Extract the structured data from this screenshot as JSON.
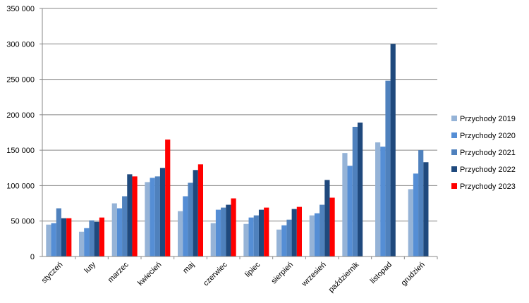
{
  "chart_data": {
    "type": "bar",
    "categories": [
      "styczeń",
      "luty",
      "marzec",
      "kwiecień",
      "maj",
      "czerwiec",
      "lipiec",
      "sierpień",
      "wrzesień",
      "październik",
      "listopad",
      "grudzień"
    ],
    "series": [
      {
        "name": "Przychody 2019",
        "color": "#95B3D7",
        "values": [
          45000,
          35000,
          75000,
          105000,
          64000,
          47000,
          46000,
          38000,
          58000,
          146000,
          161000,
          95000
        ]
      },
      {
        "name": "Przychody 2020",
        "color": "#558ED5",
        "values": [
          47000,
          40000,
          68000,
          111000,
          85000,
          66000,
          55000,
          44000,
          61000,
          128000,
          155000,
          117000
        ]
      },
      {
        "name": "Przychody 2021",
        "color": "#4F81BD",
        "values": [
          68000,
          51000,
          85000,
          113000,
          104000,
          69000,
          58000,
          52000,
          73000,
          183000,
          248000,
          150000
        ]
      },
      {
        "name": "Przychody 2022",
        "color": "#1F497D",
        "values": [
          54000,
          49000,
          116000,
          125000,
          122000,
          73000,
          66000,
          67000,
          108000,
          189000,
          300000,
          133000
        ]
      },
      {
        "name": "Przychody 2023",
        "color": "#FF0000",
        "values": [
          54000,
          55000,
          113000,
          165000,
          130000,
          82000,
          69000,
          70000,
          83000,
          null,
          null,
          null
        ]
      }
    ],
    "ylim": [
      0,
      350000
    ],
    "yticks": [
      0,
      50000,
      100000,
      150000,
      200000,
      250000,
      300000,
      350000
    ],
    "ytick_labels": [
      "0",
      "50 000",
      "100 000",
      "150 000",
      "200 000",
      "250 000",
      "300 000",
      "350 000"
    ],
    "grid": true,
    "legend_position": "right"
  }
}
